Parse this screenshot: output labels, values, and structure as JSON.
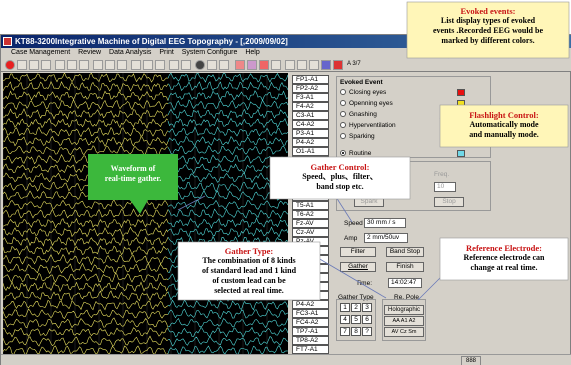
{
  "window": {
    "title": "KT88-3200Integrative Machine of Digital EEG Topography - [,2009/09/02]",
    "menu": [
      "Case Management",
      "Review",
      "Data Analysis",
      "Print",
      "System Configure",
      "Help"
    ],
    "toolbar_text": "A 3/7"
  },
  "channels": [
    "FP1-A1",
    "FP2-A2",
    "F3-A1",
    "F4-A2",
    "C3-A1",
    "C4-A2",
    "P3-A1",
    "P4-A2",
    "O1-A1",
    "O2-A2",
    "F7-A1",
    "F8-A2",
    "T3-A1",
    "T4-A2",
    "T5-A1",
    "T6-A2",
    "Fz-AV",
    "Cz-AV",
    "Pz-AV",
    "G1-A1",
    "G2-A2",
    "Fz-AV",
    "Cz-AV",
    "Pz-AV",
    "P3-A2",
    "P4-A2",
    "FC3-A1",
    "FC4-A2",
    "TP7-A1",
    "TP8-A2",
    "FT7-A1",
    "FT8-A2"
  ],
  "panel": {
    "evoked_event": {
      "title": "Evoked Event",
      "options": [
        {
          "label": "Closing eyes",
          "color": "#e81010",
          "selected": false
        },
        {
          "label": "Openning eyes",
          "color": "#f0e020",
          "selected": false
        },
        {
          "label": "Gnashing",
          "color": "#10a810",
          "selected": false
        },
        {
          "label": "Hyperventilation",
          "color": "#1830c0",
          "selected": false
        },
        {
          "label": "Sparking",
          "color": "#8a2ab0",
          "selected": false
        },
        {
          "label": "Routine",
          "color": "#70d8e8",
          "selected": true
        }
      ]
    },
    "flash_control": {
      "title": "Control",
      "rate_label": "Rate",
      "freq_label": "Freq.",
      "interval_label": "Interval",
      "interval_value": "10",
      "spark_button": "Spark",
      "stop_button": "Stop"
    },
    "speed_label": "Speed",
    "speed_value": "30 mm / s",
    "amp_label": "Amp",
    "amp_value": "2 mm/50uv",
    "filter_button": "Filter",
    "band_stop_button": "Band Stop",
    "gather_button": "Gather",
    "finish_button": "Finish",
    "time_label": "Time:",
    "time_value": "14:02:47",
    "gather_type": {
      "title": "Gather Type",
      "cells": [
        "1",
        "2",
        "3",
        "4",
        "5",
        "6",
        "7",
        "8",
        "?"
      ]
    },
    "re_pole": {
      "title": "Re. Pole",
      "holographic": "Holographic",
      "options": [
        "AA",
        "A1",
        "A2",
        "AV",
        "Cz",
        "Sm"
      ]
    }
  },
  "status_text": "888",
  "callouts": {
    "evoked": {
      "title": "Evoked events:",
      "body": [
        "List display types of evoked",
        "events .Recorded EEG would be",
        "marked by different colors."
      ]
    },
    "flashlight": {
      "title": "Flashlight Control:",
      "body": [
        "Automatically mode",
        "and manually mode."
      ]
    },
    "gather_control": {
      "title": "Gather Control:",
      "body": [
        "Speed、plus、filter、",
        "band stop etc."
      ]
    },
    "waveform": {
      "body": [
        "Waveform of",
        "real-time gather."
      ]
    },
    "gather_type": {
      "title": "Gather Type:",
      "body": [
        "The combination of 8 kinds",
        "of standard lead and 1 kind",
        "of custom lead can be",
        "selected at real time."
      ]
    },
    "reference": {
      "title": "Reference Electrode:",
      "body": [
        "Reference electrode can",
        "change at real time."
      ]
    }
  },
  "colors": {
    "wave_yellow": "#e8e060",
    "wave_cyan": "#50d8d8",
    "accent_red": "#c81414",
    "callout_green": "#3cb83c",
    "callout_yellow": "#fff6b8",
    "callout_white": "#ffffff"
  }
}
